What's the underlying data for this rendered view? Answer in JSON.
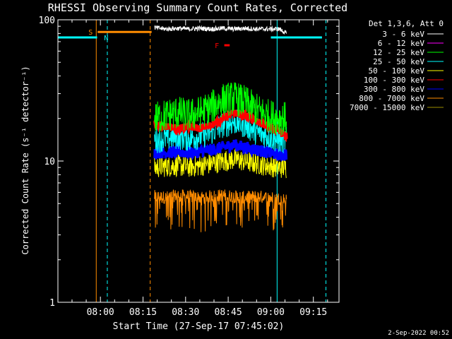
{
  "chart_data": {
    "type": "line",
    "title": "RHESSI Observing Summary Count Rates, Corrected",
    "xlabel": "Start Time (27-Sep-17 07:45:02)",
    "ylabel": "Corrected Count Rate (s⁻¹ detector⁻¹)",
    "y_scale": "log",
    "ylim": [
      1,
      100
    ],
    "xlim_minutes_from_start": [
      0,
      99
    ],
    "x_ticks": [
      {
        "label": "08:00",
        "t": 14.97
      },
      {
        "label": "08:15",
        "t": 29.97
      },
      {
        "label": "08:30",
        "t": 44.97
      },
      {
        "label": "08:45",
        "t": 59.97
      },
      {
        "label": "09:00",
        "t": 74.97
      },
      {
        "label": "09:15",
        "t": 89.97
      }
    ],
    "y_ticks": [
      {
        "label": "1",
        "v": 1
      },
      {
        "label": "10",
        "v": 10
      },
      {
        "label": "100",
        "v": 100
      }
    ],
    "legend_title": "Det 1,3,6, Att 0",
    "legend_placement": "right",
    "series": [
      {
        "name": "3 - 6 keV",
        "color": "#ffffff",
        "x": [
          34,
          38,
          42,
          46,
          50,
          54,
          58,
          62,
          66,
          70,
          74,
          78,
          80.5
        ],
        "values": [
          88,
          86,
          87,
          86,
          87,
          86,
          87,
          86,
          87,
          86,
          86,
          86,
          80
        ]
      },
      {
        "name": "6 - 12 keV",
        "color": "#ff00ff",
        "x": [],
        "values": []
      },
      {
        "name": "12 - 25 keV",
        "color": "#00ff00",
        "x": [
          34,
          38,
          42,
          46,
          50,
          54,
          58,
          62,
          66,
          70,
          74,
          78,
          80.5
        ],
        "values": [
          20,
          21,
          22,
          21,
          22,
          24,
          27,
          28,
          26,
          23,
          21,
          20,
          20
        ]
      },
      {
        "name": "25 - 50 keV",
        "color": "#00ffff",
        "x": [
          34,
          38,
          42,
          46,
          50,
          54,
          58,
          62,
          66,
          70,
          74,
          78,
          80.5
        ],
        "values": [
          14,
          14.5,
          15,
          14.5,
          15,
          16,
          18,
          19,
          18,
          16,
          15,
          14,
          14
        ]
      },
      {
        "name": "50 - 100 keV",
        "color": "#ffff00",
        "x": [
          34,
          38,
          42,
          46,
          50,
          54,
          58,
          62,
          66,
          70,
          74,
          78,
          80.5
        ],
        "values": [
          9,
          9.2,
          9.3,
          9.1,
          9.3,
          9.6,
          10,
          10.3,
          10,
          9.6,
          9.3,
          9,
          9
        ]
      },
      {
        "name": "100 - 300 keV",
        "color": "#ff0000",
        "x": [
          34,
          38,
          42,
          46,
          50,
          54,
          58,
          62,
          66,
          70,
          74,
          78,
          80.5
        ],
        "values": [
          18.5,
          17.5,
          17,
          17.5,
          17,
          18,
          20,
          22,
          21,
          19,
          17.5,
          16,
          15
        ]
      },
      {
        "name": "300 - 800 keV",
        "color": "#0000ff",
        "x": [
          34,
          38,
          42,
          46,
          50,
          54,
          58,
          62,
          66,
          70,
          74,
          78,
          80.5
        ],
        "values": [
          11.5,
          11.5,
          11.6,
          11.5,
          11.6,
          12,
          12.5,
          13,
          12.5,
          12,
          11.5,
          11,
          11
        ]
      },
      {
        "name": "800 - 7000 keV",
        "color": "#ff8c00",
        "x": [
          34,
          38,
          42,
          46,
          50,
          54,
          58,
          62,
          66,
          70,
          74,
          78,
          80.5
        ],
        "values": [
          5.5,
          5.4,
          5.6,
          5.5,
          5.4,
          5.5,
          5.6,
          5.5,
          5.4,
          5.5,
          5.4,
          5.3,
          5.2
        ]
      },
      {
        "name": "7000 - 15000 keV",
        "color": "#9b8e00",
        "x": [],
        "values": []
      }
    ],
    "baseline_data": {
      "x": [
        0,
        13.8
      ],
      "values": [
        75,
        75
      ],
      "color": "#00ffff",
      "x_right": [
        75,
        93
      ],
      "values_right": [
        75,
        75
      ]
    },
    "annotations": [
      {
        "label": "S",
        "color": "#ff8c00",
        "t": 11.5,
        "v": 82
      },
      {
        "label": "N",
        "color": "#00ffff",
        "t": 17,
        "v": 75
      },
      {
        "label": "F",
        "color": "#ff0000",
        "t": 56,
        "v": 66
      }
    ],
    "saa_bar": {
      "label": "S",
      "color": "#ff8c00",
      "x0": 14,
      "x1": 33,
      "v": 82
    },
    "flare_bar": {
      "label": "F",
      "color": "#ff0000",
      "x0": 58.6,
      "x1": 60.5,
      "v": 66
    },
    "vertical_lines": [
      {
        "t": 13.5,
        "color": "#ff8c00",
        "style": "solid"
      },
      {
        "t": 17.4,
        "color": "#00ffff",
        "style": "dashed"
      },
      {
        "t": 32.5,
        "color": "#ff8c00",
        "style": "dashed"
      },
      {
        "t": 77.2,
        "color": "#00ffff",
        "style": "solid"
      },
      {
        "t": 94.4,
        "color": "#00ffff",
        "style": "dashed"
      }
    ],
    "footer_date": "2-Sep-2022 00:52",
    "grid": false
  }
}
